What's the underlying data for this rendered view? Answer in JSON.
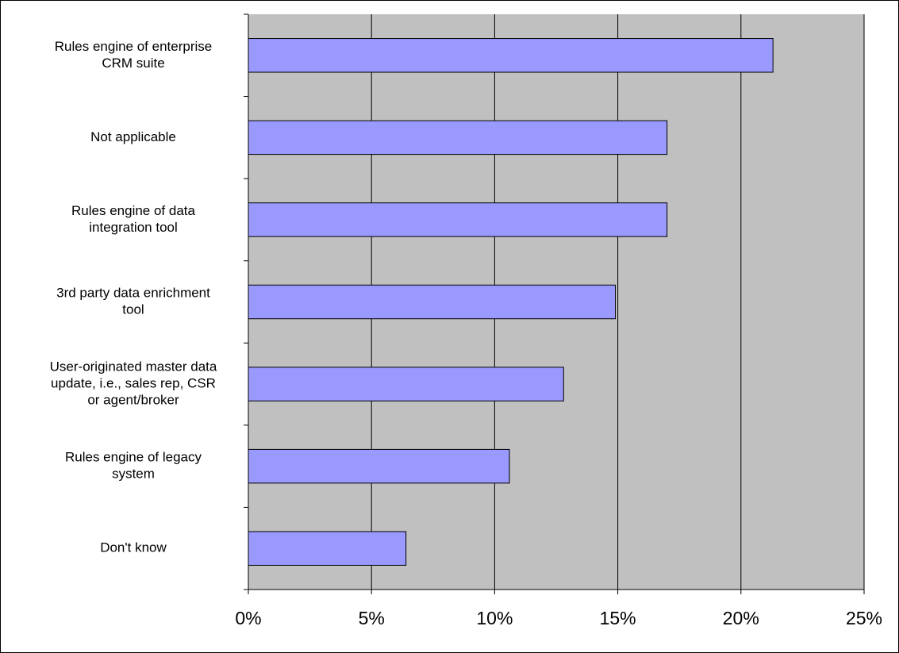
{
  "chart_data": {
    "type": "bar",
    "orientation": "horizontal",
    "categories": [
      [
        "Rules engine of enterprise",
        "CRM suite"
      ],
      [
        "Not applicable"
      ],
      [
        "Rules engine of data",
        "integration tool"
      ],
      [
        "3rd party data enrichment",
        "tool"
      ],
      [
        "User-originated master data",
        "update, i.e., sales rep, CSR",
        "or agent/broker"
      ],
      [
        "Rules engine of legacy",
        "system"
      ],
      [
        "Don't know"
      ]
    ],
    "values": [
      21.3,
      17.0,
      17.0,
      14.9,
      12.8,
      10.6,
      6.4
    ],
    "xlim": [
      0,
      25
    ],
    "x_ticks": [
      0,
      5,
      10,
      15,
      20,
      25
    ],
    "x_tick_labels": [
      "0%",
      "5%",
      "10%",
      "15%",
      "20%",
      "25%"
    ],
    "grid": "vertical",
    "legend": "none",
    "title": "",
    "xlabel": "",
    "ylabel": "",
    "colors": {
      "bar": "#9999ff",
      "bar_edge": "#000000",
      "plot_background": "#c0c0c0",
      "gridline": "#000000"
    }
  }
}
